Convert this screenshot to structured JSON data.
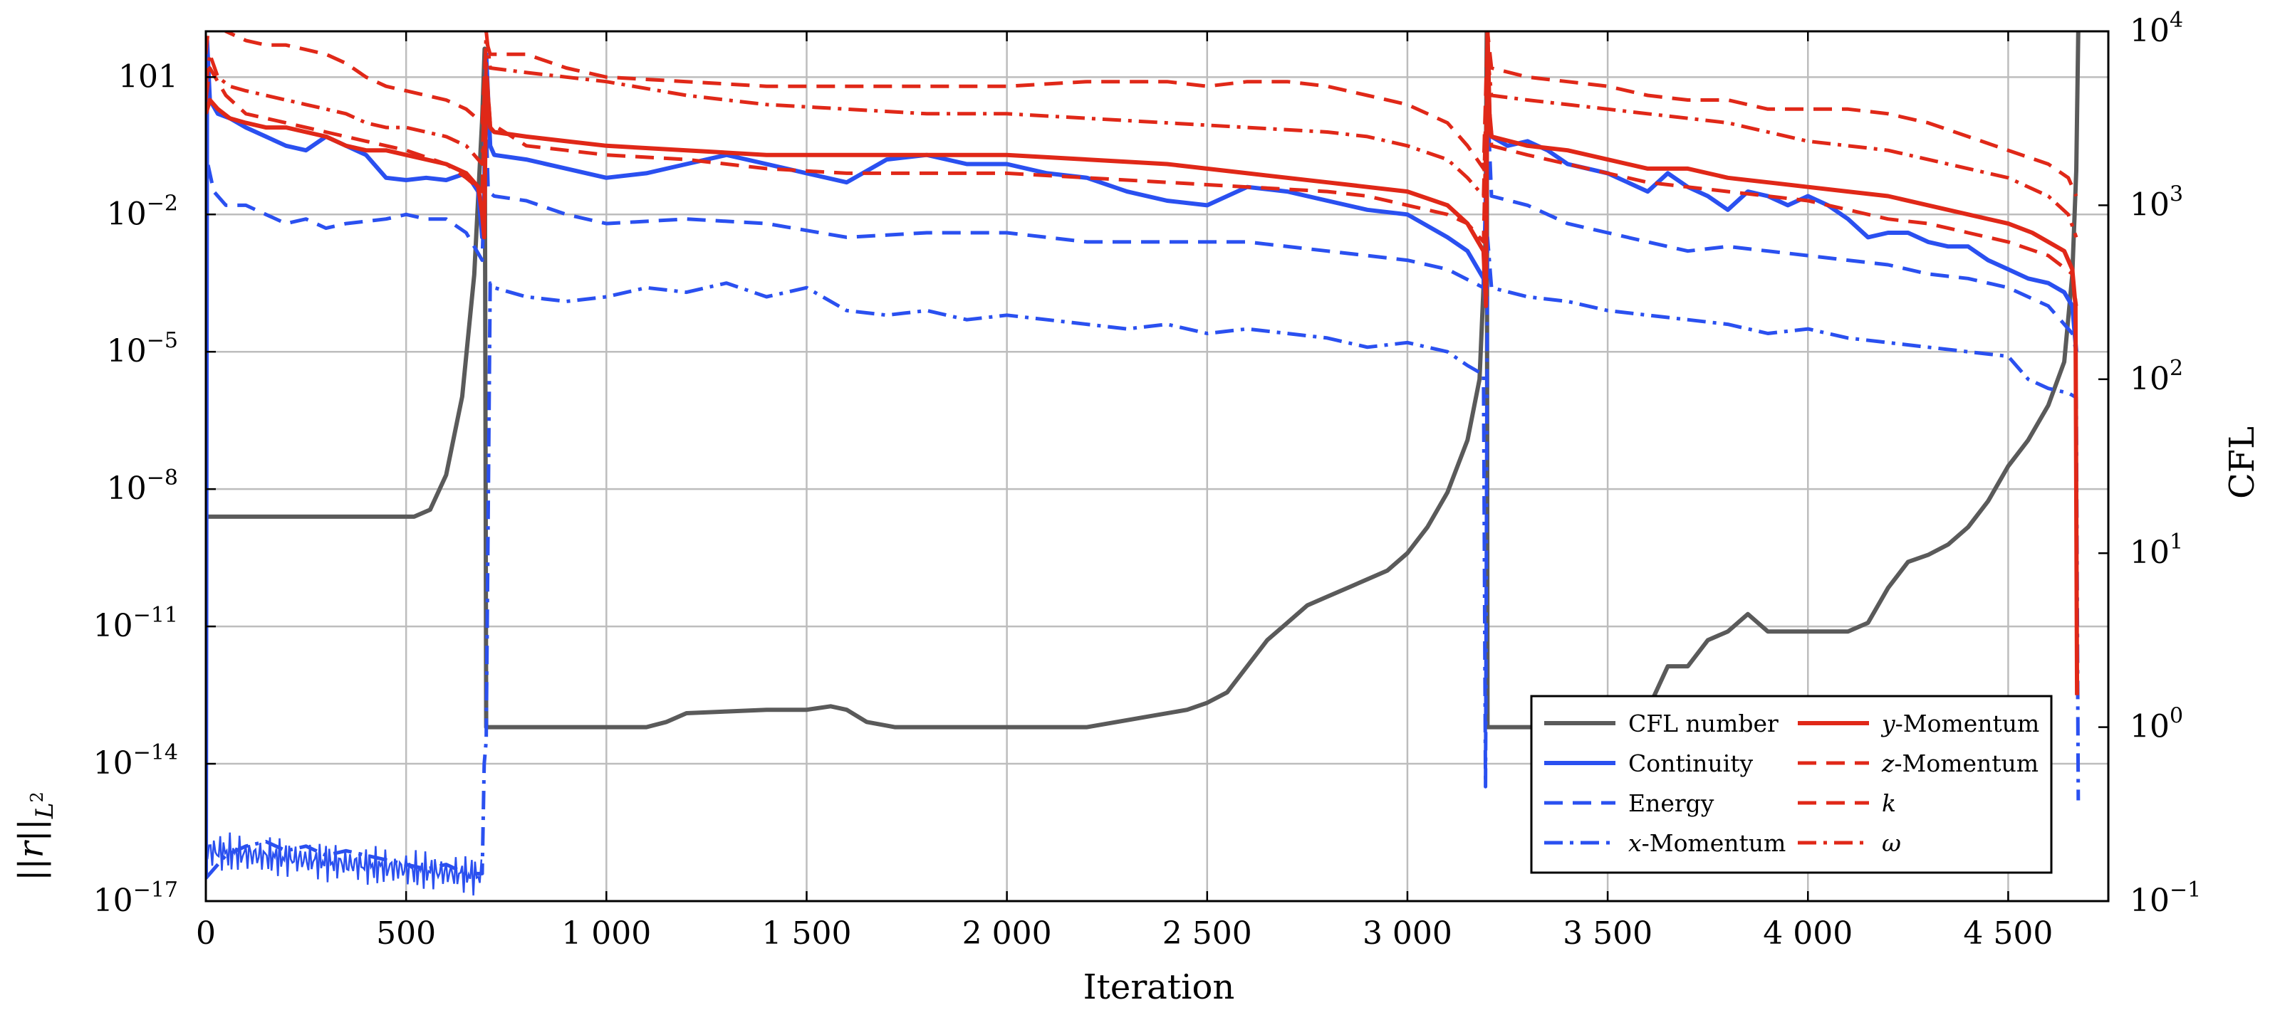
{
  "chart_data": {
    "type": "line",
    "title": "",
    "xlabel": "Iteration",
    "ylabel_left": "||r||_{L^2}",
    "ylabel_right": "CFL",
    "xlim": [
      0,
      4750
    ],
    "ylim_left_log10": [
      -17,
      2
    ],
    "ylim_right_log10": [
      -1,
      4
    ],
    "grid": true,
    "x_ticks": [
      {
        "value": 0,
        "label": "0"
      },
      {
        "value": 500,
        "label": "500"
      },
      {
        "value": 1000,
        "label": "1 000"
      },
      {
        "value": 1500,
        "label": "1 500"
      },
      {
        "value": 2000,
        "label": "2 000"
      },
      {
        "value": 2500,
        "label": "2 500"
      },
      {
        "value": 3000,
        "label": "3 000"
      },
      {
        "value": 3500,
        "label": "3 500"
      },
      {
        "value": 4000,
        "label": "4 000"
      },
      {
        "value": 4500,
        "label": "4 500"
      }
    ],
    "y_left_ticks": [
      {
        "value": 1,
        "base": "10",
        "exp": ""
      },
      {
        "value": -2,
        "base": "10",
        "exp": "−2"
      },
      {
        "value": -5,
        "base": "10",
        "exp": "−5"
      },
      {
        "value": -8,
        "base": "10",
        "exp": "−8"
      },
      {
        "value": -11,
        "base": "10",
        "exp": "−11"
      },
      {
        "value": -14,
        "base": "10",
        "exp": "−14"
      },
      {
        "value": -17,
        "base": "10",
        "exp": "−17"
      }
    ],
    "y_right_ticks": [
      {
        "value": 4,
        "base": "10",
        "exp": "4"
      },
      {
        "value": 3,
        "base": "10",
        "exp": "3"
      },
      {
        "value": 2,
        "base": "10",
        "exp": "2"
      },
      {
        "value": 1,
        "base": "10",
        "exp": "1"
      },
      {
        "value": 0,
        "base": "10",
        "exp": "0"
      },
      {
        "value": -1,
        "base": "10",
        "exp": "−1"
      }
    ],
    "legend_position": "bottom-right",
    "series": [
      {
        "name": "CFL number",
        "label": "CFL number",
        "axis": "right",
        "color": "#5a5a5a",
        "dash": "solid",
        "x": [
          0,
          520,
          560,
          600,
          640,
          670,
          690,
          696,
          700,
          710,
          720,
          1100,
          1150,
          1200,
          1300,
          1400,
          1500,
          1560,
          1600,
          1650,
          1720,
          2000,
          2200,
          2250,
          2350,
          2450,
          2500,
          2550,
          2600,
          2650,
          2700,
          2750,
          2800,
          2850,
          2900,
          2950,
          3000,
          3050,
          3100,
          3150,
          3180,
          3195,
          3198,
          3200,
          3210,
          3500,
          3600,
          3650,
          3700,
          3750,
          3800,
          3850,
          3900,
          3950,
          4000,
          4100,
          4150,
          4200,
          4250,
          4300,
          4350,
          4400,
          4450,
          4500,
          4550,
          4600,
          4640,
          4660,
          4670,
          4675
        ],
        "y": [
          1.21,
          1.21,
          1.25,
          1.45,
          1.9,
          2.6,
          3.5,
          3.9,
          0,
          0,
          0,
          0,
          0.03,
          0.08,
          0.09,
          0.1,
          0.1,
          0.12,
          0.1,
          0.03,
          0,
          0,
          0,
          0.02,
          0.06,
          0.1,
          0.14,
          0.2,
          0.35,
          0.5,
          0.6,
          0.7,
          0.75,
          0.8,
          0.85,
          0.9,
          1.0,
          1.15,
          1.35,
          1.65,
          2.0,
          2.8,
          4.0,
          0,
          0,
          0,
          0.1,
          0.35,
          0.35,
          0.5,
          0.55,
          0.65,
          0.55,
          0.55,
          0.55,
          0.55,
          0.6,
          0.8,
          0.95,
          0.99,
          1.05,
          1.15,
          1.3,
          1.5,
          1.65,
          1.85,
          2.1,
          2.6,
          3.2,
          4.0
        ]
      },
      {
        "name": "Continuity",
        "label": "Continuity",
        "axis": "left",
        "color": "#2a50f0",
        "dash": "solid",
        "x": [
          0,
          3,
          10,
          30,
          60,
          100,
          150,
          200,
          250,
          300,
          350,
          400,
          450,
          500,
          550,
          600,
          650,
          680,
          690,
          695,
          700,
          705,
          710,
          720,
          800,
          900,
          1000,
          1100,
          1200,
          1300,
          1400,
          1500,
          1600,
          1700,
          1800,
          1900,
          2000,
          2100,
          2200,
          2300,
          2400,
          2500,
          2600,
          2700,
          2800,
          2900,
          3000,
          3100,
          3150,
          3190,
          3196,
          3200,
          3205,
          3210,
          3250,
          3300,
          3350,
          3400,
          3450,
          3500,
          3550,
          3600,
          3650,
          3700,
          3750,
          3800,
          3850,
          3900,
          3950,
          4000,
          4050,
          4100,
          4150,
          4200,
          4250,
          4300,
          4350,
          4400,
          4450,
          4500,
          4550,
          4600,
          4640,
          4660,
          4670
        ],
        "y": [
          -16.5,
          1.8,
          0.5,
          0.2,
          0.1,
          -0.1,
          -0.3,
          -0.5,
          -0.6,
          -0.3,
          -0.5,
          -0.7,
          -1.2,
          -1.25,
          -1.2,
          -1.25,
          -1.1,
          -1.5,
          -2.5,
          -1.5,
          1.5,
          0.5,
          -0.5,
          -0.7,
          -0.8,
          -1.0,
          -1.2,
          -1.1,
          -0.9,
          -0.7,
          -0.9,
          -1.1,
          -1.3,
          -0.8,
          -0.7,
          -0.9,
          -0.9,
          -1.1,
          -1.2,
          -1.5,
          -1.7,
          -1.8,
          -1.4,
          -1.5,
          -1.7,
          -1.9,
          -2.0,
          -2.5,
          -2.8,
          -3.4,
          -4,
          1.6,
          0.1,
          -0.3,
          -0.5,
          -0.4,
          -0.6,
          -0.9,
          -1.0,
          -1.1,
          -1.3,
          -1.5,
          -1.1,
          -1.4,
          -1.6,
          -1.9,
          -1.5,
          -1.6,
          -1.8,
          -1.6,
          -1.8,
          -2.1,
          -2.5,
          -2.4,
          -2.4,
          -2.6,
          -2.7,
          -2.7,
          -3.0,
          -3.2,
          -3.4,
          -3.5,
          -3.7,
          -4.0,
          -5.0
        ]
      },
      {
        "name": "Energy",
        "label": "Energy",
        "axis": "left",
        "color": "#2a50f0",
        "dash": "dashed",
        "x": [
          0,
          5,
          20,
          50,
          100,
          150,
          200,
          250,
          300,
          350,
          400,
          450,
          500,
          550,
          600,
          650,
          690,
          700,
          705,
          720,
          800,
          900,
          1000,
          1200,
          1400,
          1600,
          1800,
          2000,
          2200,
          2400,
          2600,
          2800,
          3000,
          3100,
          3190,
          3200,
          3210,
          3300,
          3400,
          3500,
          3600,
          3700,
          3800,
          3900,
          4000,
          4100,
          4200,
          4300,
          4400,
          4500,
          4600,
          4660,
          4670
        ],
        "y": [
          -1.5,
          -0.9,
          -1.5,
          -1.8,
          -1.8,
          -2.0,
          -2.2,
          -2.1,
          -2.3,
          -2.2,
          -2.15,
          -2.1,
          -2.0,
          -2.1,
          -2.1,
          -2.4,
          -3.0,
          0,
          -1.5,
          -1.6,
          -1.7,
          -2.0,
          -2.2,
          -2.1,
          -2.2,
          -2.5,
          -2.4,
          -2.4,
          -2.6,
          -2.6,
          -2.6,
          -2.8,
          -3.0,
          -3.2,
          -3.6,
          0.5,
          -1.6,
          -1.8,
          -2.2,
          -2.4,
          -2.6,
          -2.8,
          -2.7,
          -2.8,
          -2.9,
          -3.0,
          -3.1,
          -3.3,
          -3.4,
          -3.6,
          -4.0,
          -4.6,
          -5.0
        ]
      },
      {
        "name": "x-Momentum",
        "label": "x-Momentum",
        "axis": "left",
        "color": "#2a50f0",
        "dash": "dashdot",
        "x": [
          0,
          20,
          50,
          100,
          150,
          200,
          250,
          300,
          350,
          400,
          450,
          500,
          550,
          600,
          650,
          690,
          695,
          700,
          710,
          720,
          800,
          900,
          1000,
          1100,
          1200,
          1300,
          1400,
          1500,
          1600,
          1700,
          1800,
          1900,
          2000,
          2100,
          2200,
          2300,
          2400,
          2500,
          2600,
          2700,
          2800,
          2900,
          3000,
          3100,
          3150,
          3190,
          3195,
          3200,
          3210,
          3300,
          3400,
          3500,
          3600,
          3700,
          3800,
          3900,
          4000,
          4100,
          4200,
          4300,
          4400,
          4500,
          4550,
          4600,
          4650,
          4670,
          4675
        ],
        "y": [
          -16.5,
          -16.3,
          -16.0,
          -15.8,
          -15.7,
          -15.9,
          -15.8,
          -16.0,
          -15.9,
          -16.0,
          -16.1,
          -16.2,
          -16.3,
          -16.2,
          -16.4,
          -16.4,
          -14,
          -13.5,
          -3.5,
          -3.6,
          -3.8,
          -3.9,
          -3.8,
          -3.6,
          -3.7,
          -3.5,
          -3.8,
          -3.6,
          -4.1,
          -4.2,
          -4.1,
          -4.3,
          -4.2,
          -4.3,
          -4.4,
          -4.5,
          -4.4,
          -4.6,
          -4.5,
          -4.6,
          -4.7,
          -4.9,
          -4.8,
          -5.0,
          -5.3,
          -5.5,
          -14.5,
          -2.5,
          -3.6,
          -3.8,
          -3.9,
          -4.1,
          -4.2,
          -4.3,
          -4.4,
          -4.6,
          -4.5,
          -4.7,
          -4.8,
          -4.9,
          -5.0,
          -5.1,
          -5.6,
          -5.8,
          -5.9,
          -6.0,
          -14.8
        ]
      },
      {
        "name": "y-Momentum",
        "label": "y-Momentum",
        "axis": "left",
        "color": "#e02818",
        "dash": "solid",
        "x": [
          0,
          10,
          30,
          60,
          100,
          150,
          200,
          250,
          300,
          350,
          400,
          450,
          500,
          550,
          600,
          650,
          680,
          690,
          695,
          700,
          705,
          710,
          720,
          800,
          900,
          1000,
          1200,
          1400,
          1600,
          1800,
          2000,
          2200,
          2400,
          2600,
          2800,
          3000,
          3100,
          3150,
          3190,
          3196,
          3200,
          3205,
          3210,
          3300,
          3400,
          3500,
          3600,
          3700,
          3800,
          3900,
          4000,
          4100,
          4200,
          4300,
          4400,
          4500,
          4560,
          4600,
          4640,
          4660,
          4668,
          4672
        ],
        "y": [
          0.2,
          0.5,
          0.3,
          0.1,
          0,
          -0.1,
          -0.1,
          -0.2,
          -0.3,
          -0.5,
          -0.6,
          -0.6,
          -0.7,
          -0.8,
          -0.9,
          -1.1,
          -1.4,
          -2.0,
          -2.5,
          1.0,
          0.5,
          -0.1,
          -0.2,
          -0.3,
          -0.4,
          -0.5,
          -0.6,
          -0.7,
          -0.7,
          -0.7,
          -0.7,
          -0.8,
          -0.9,
          -1.1,
          -1.3,
          -1.5,
          -1.8,
          -2.2,
          -2.8,
          -4.0,
          2.0,
          0.2,
          -0.3,
          -0.5,
          -0.6,
          -0.8,
          -1.0,
          -1.0,
          -1.2,
          -1.3,
          -1.4,
          -1.5,
          -1.6,
          -1.8,
          -2.0,
          -2.2,
          -2.4,
          -2.6,
          -2.8,
          -3.2,
          -4.0,
          -12.5
        ]
      },
      {
        "name": "z-Momentum",
        "label": "z-Momentum",
        "axis": "left",
        "color": "#e02818",
        "dash": "dashed",
        "x": [
          0,
          10,
          50,
          100,
          200,
          300,
          400,
          500,
          600,
          650,
          690,
          700,
          710,
          800,
          900,
          1000,
          1200,
          1400,
          1600,
          1800,
          2000,
          2200,
          2400,
          2600,
          2800,
          2900,
          3000,
          3100,
          3150,
          3190,
          3200,
          3210,
          3300,
          3400,
          3500,
          3600,
          3700,
          3800,
          3900,
          4000,
          4100,
          4200,
          4300,
          4400,
          4500,
          4600,
          4660,
          4670
        ],
        "y": [
          0.5,
          1.2,
          0.6,
          0.2,
          0,
          -0.2,
          -0.4,
          -0.6,
          -0.9,
          -1.2,
          -1.5,
          1.3,
          0,
          -0.5,
          -0.6,
          -0.7,
          -0.8,
          -1.0,
          -1.1,
          -1.1,
          -1.1,
          -1.2,
          -1.3,
          -1.4,
          -1.5,
          -1.6,
          -1.8,
          -2.0,
          -2.2,
          -2.6,
          1.2,
          -0.5,
          -0.7,
          -0.9,
          -1.1,
          -1.3,
          -1.4,
          -1.5,
          -1.6,
          -1.7,
          -1.9,
          -2.1,
          -2.2,
          -2.4,
          -2.6,
          -2.9,
          -3.3,
          -4.0
        ]
      },
      {
        "name": "k",
        "label": "k",
        "axis": "left",
        "color": "#e02818",
        "dash": "dashed",
        "x": [
          0,
          10,
          50,
          100,
          150,
          200,
          250,
          300,
          350,
          400,
          450,
          500,
          550,
          600,
          650,
          690,
          700,
          710,
          800,
          900,
          1000,
          1200,
          1400,
          1600,
          1800,
          2000,
          2200,
          2400,
          2500,
          2600,
          2700,
          2800,
          2900,
          3000,
          3100,
          3150,
          3190,
          3200,
          3210,
          3300,
          3400,
          3500,
          3600,
          3700,
          3800,
          3900,
          4000,
          4100,
          4200,
          4300,
          4400,
          4500,
          4600,
          4650,
          4670
        ],
        "y": [
          1.5,
          2.4,
          2.0,
          1.8,
          1.7,
          1.7,
          1.6,
          1.5,
          1.3,
          1.0,
          0.8,
          0.7,
          0.6,
          0.5,
          0.3,
          0,
          1.8,
          1.5,
          1.5,
          1.2,
          1.0,
          0.9,
          0.8,
          0.8,
          0.8,
          0.8,
          0.9,
          0.9,
          0.8,
          0.9,
          0.9,
          0.8,
          0.6,
          0.4,
          0,
          -0.5,
          -1.0,
          2.0,
          1.2,
          1.0,
          0.9,
          0.8,
          0.6,
          0.5,
          0.5,
          0.3,
          0.3,
          0.3,
          0.2,
          0.0,
          -0.3,
          -0.6,
          -0.9,
          -1.2,
          -1.6
        ]
      },
      {
        "name": "omega",
        "label": "ω",
        "axis": "left",
        "color": "#e02818",
        "dash": "dashdot",
        "x": [
          0,
          10,
          30,
          60,
          100,
          150,
          200,
          250,
          300,
          350,
          400,
          450,
          500,
          550,
          600,
          650,
          690,
          700,
          710,
          800,
          900,
          1000,
          1200,
          1400,
          1600,
          1800,
          2000,
          2200,
          2400,
          2600,
          2800,
          2900,
          3000,
          3100,
          3150,
          3190,
          3200,
          3210,
          3300,
          3400,
          3500,
          3600,
          3700,
          3800,
          3900,
          4000,
          4100,
          4200,
          4300,
          4400,
          4500,
          4600,
          4650,
          4670
        ],
        "y": [
          0.8,
          1.5,
          1.0,
          0.8,
          0.7,
          0.6,
          0.5,
          0.4,
          0.3,
          0.2,
          0.0,
          -0.1,
          -0.1,
          -0.2,
          -0.3,
          -0.5,
          -0.9,
          2.0,
          1.2,
          1.1,
          1.0,
          0.9,
          0.6,
          0.4,
          0.3,
          0.2,
          0.2,
          0.1,
          0,
          -0.1,
          -0.2,
          -0.3,
          -0.5,
          -0.8,
          -1.2,
          -1.6,
          1.5,
          0.6,
          0.5,
          0.4,
          0.3,
          0.2,
          0.1,
          0.0,
          -0.2,
          -0.4,
          -0.5,
          -0.6,
          -0.8,
          -1.0,
          -1.2,
          -1.6,
          -2.0,
          -2.5
        ]
      }
    ]
  }
}
